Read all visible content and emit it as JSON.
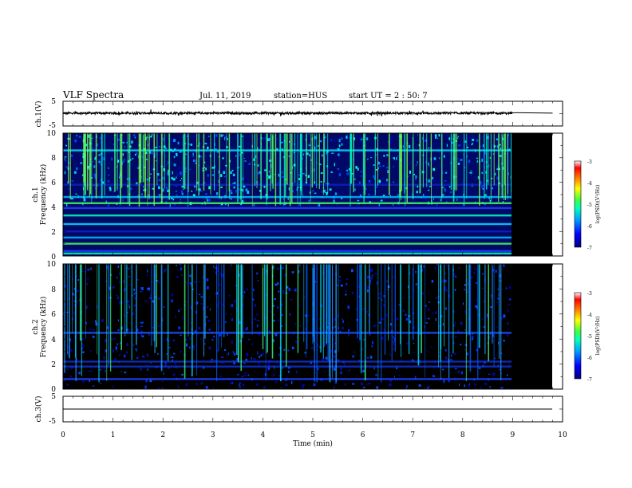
{
  "header": {
    "title": "VLF Spectra",
    "date": "Jul. 11, 2019",
    "station": "station=HUS",
    "start": "start UT =  2 : 50: 7"
  },
  "colors": {
    "background": "#ffffff",
    "no_data": "#000000",
    "line": "#000000",
    "colormap": [
      "#00007f",
      "#0000ff",
      "#00a0ff",
      "#00ffc0",
      "#40ff40",
      "#ffff00",
      "#ff8000",
      "#ff0000",
      "#ffffff"
    ]
  },
  "chart_data": [
    {
      "type": "line",
      "panel": "ch1-waveform",
      "ylabel": "ch.1(V)",
      "ylim": [
        -5,
        5
      ],
      "yticks": [
        "5",
        "-5"
      ],
      "xlim": [
        0,
        10
      ],
      "series": [
        {
          "x": [
            0,
            9.0
          ],
          "y": [
            0.2,
            0.2
          ]
        }
      ],
      "flat_after": {
        "x": [
          9.0,
          9.8
        ],
        "y": 0.2
      }
    },
    {
      "type": "heatmap",
      "panel": "ch1-spectrogram",
      "ylabel": "ch.1\nFrequency (kHz)",
      "ylabel_line1": "ch.1",
      "ylabel_line2": "Frequency (kHz)",
      "ylim": [
        0,
        10
      ],
      "yticks": [
        "0",
        "2",
        "4",
        "6",
        "8",
        "10"
      ],
      "xlim": [
        0,
        10
      ],
      "data_end_min": 9.0,
      "nodata_until_min": 9.8,
      "bands_khz": [
        0.2,
        0.4,
        1.0,
        1.5,
        2.0,
        2.6,
        3.3,
        3.9,
        4.3,
        4.8,
        5.8,
        8.6
      ],
      "colorbar": {
        "ticks": [
          "-3",
          "-4",
          "-5",
          "-6",
          "-7"
        ],
        "label": "log(PSD)(V²/Hz)"
      }
    },
    {
      "type": "heatmap",
      "panel": "ch2-spectrogram",
      "ylabel_line1": "ch.2",
      "ylabel_line2": "Frequency (kHz)",
      "ylim": [
        0,
        10
      ],
      "yticks": [
        "0",
        "2",
        "4",
        "6",
        "8",
        "10"
      ],
      "xlim": [
        0,
        10
      ],
      "data_end_min": 9.0,
      "nodata_until_min": 9.8,
      "bands_khz": [
        0.8,
        1.8,
        2.2,
        4.5
      ],
      "colorbar": {
        "ticks": [
          "-3",
          "-4",
          "-5",
          "-6",
          "-7"
        ],
        "label": "log(PSD)(V²/Hz)"
      }
    },
    {
      "type": "line",
      "panel": "ch3-waveform",
      "ylabel": "ch.3(V)",
      "ylim": [
        -5,
        5
      ],
      "yticks": [
        "5",
        "-5"
      ],
      "xlim": [
        0,
        10
      ],
      "series": [
        {
          "x": [
            0,
            9.8
          ],
          "y": [
            0,
            0
          ]
        }
      ]
    }
  ],
  "xaxis": {
    "label": "Time (min)",
    "ticks": [
      "0",
      "1",
      "2",
      "3",
      "4",
      "5",
      "6",
      "7",
      "8",
      "9",
      "10"
    ]
  }
}
